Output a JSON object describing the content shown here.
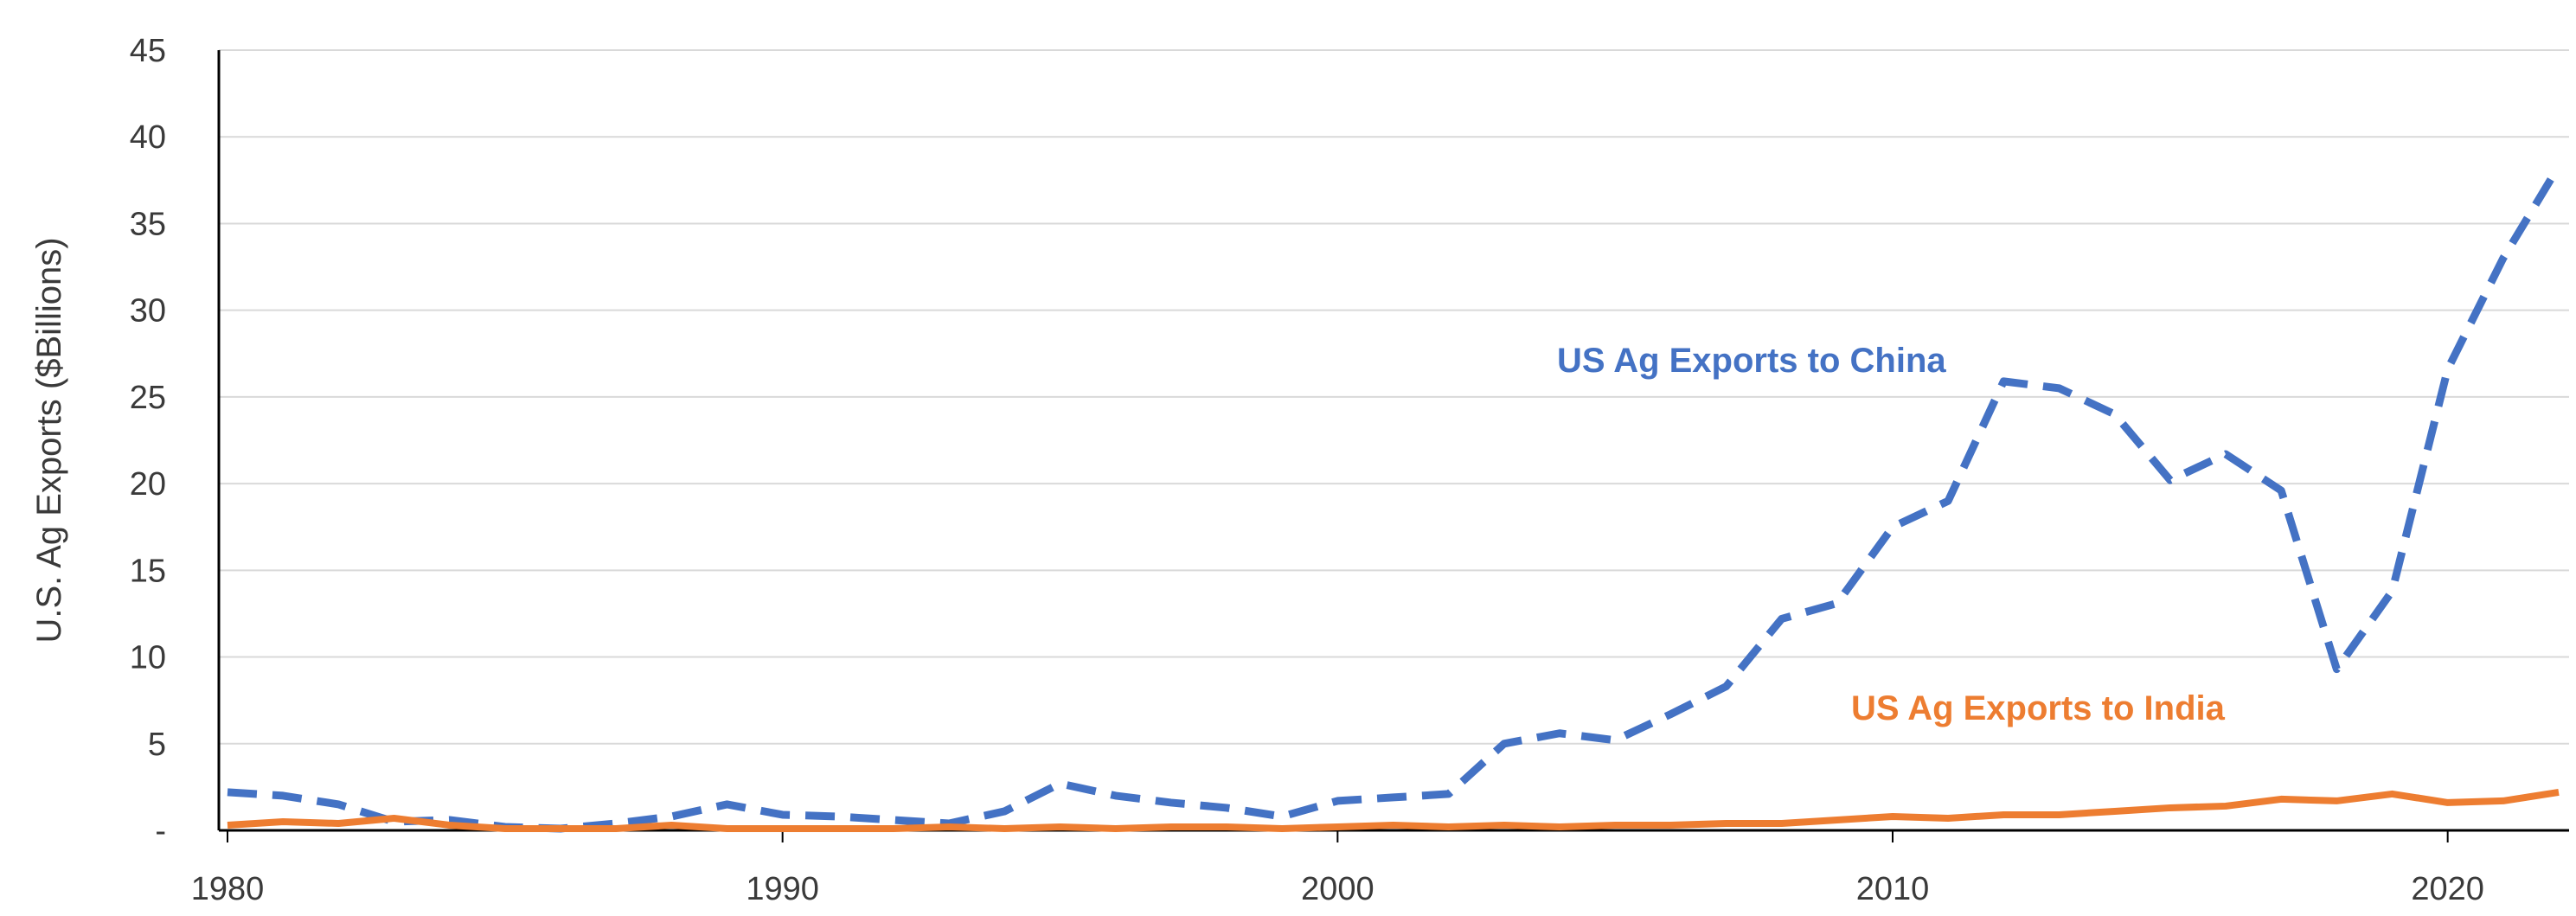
{
  "chart_data": {
    "type": "line",
    "ylabel": "U.S. Ag Exports ($Billions)",
    "xlabel": "",
    "xlim": [
      1980,
      2022
    ],
    "ylim": [
      0,
      45
    ],
    "x_ticks": [
      1980,
      1990,
      2000,
      2010,
      2020
    ],
    "y_ticks": [
      0,
      5,
      10,
      15,
      20,
      25,
      30,
      35,
      40,
      45
    ],
    "y_tick_labels": [
      "-",
      "5",
      "10",
      "15",
      "20",
      "25",
      "30",
      "35",
      "40",
      "45"
    ],
    "grid": true,
    "legend": "none",
    "x": [
      1980,
      1981,
      1982,
      1983,
      1984,
      1985,
      1986,
      1987,
      1988,
      1989,
      1990,
      1991,
      1992,
      1993,
      1994,
      1995,
      1996,
      1997,
      1998,
      1999,
      2000,
      2001,
      2002,
      2003,
      2004,
      2005,
      2006,
      2007,
      2008,
      2009,
      2010,
      2011,
      2012,
      2013,
      2014,
      2015,
      2016,
      2017,
      2018,
      2019,
      2020,
      2021,
      2022
    ],
    "series": [
      {
        "name": "US Ag Exports to China",
        "color": "#4472C4",
        "line_style": "dashed",
        "values": [
          2.2,
          2.0,
          1.5,
          0.5,
          0.6,
          0.2,
          0.1,
          0.4,
          0.8,
          1.5,
          0.9,
          0.8,
          0.6,
          0.4,
          1.1,
          2.7,
          2.0,
          1.6,
          1.3,
          0.8,
          1.7,
          1.9,
          2.1,
          5.0,
          5.6,
          5.2,
          6.7,
          8.3,
          12.2,
          13.1,
          17.5,
          19.0,
          25.9,
          25.5,
          24.0,
          20.2,
          21.7,
          19.6,
          9.3,
          13.8,
          26.6,
          33.0,
          38.3
        ]
      },
      {
        "name": "US Ag Exports to India",
        "color": "#ED7D31",
        "line_style": "solid",
        "values": [
          0.3,
          0.5,
          0.4,
          0.7,
          0.3,
          0.1,
          0.1,
          0.1,
          0.3,
          0.1,
          0.1,
          0.1,
          0.1,
          0.2,
          0.1,
          0.2,
          0.1,
          0.2,
          0.2,
          0.1,
          0.2,
          0.3,
          0.2,
          0.3,
          0.2,
          0.3,
          0.3,
          0.4,
          0.4,
          0.6,
          0.8,
          0.7,
          0.9,
          0.9,
          1.1,
          1.3,
          1.4,
          1.8,
          1.7,
          2.1,
          1.6,
          1.7,
          2.2
        ]
      }
    ]
  }
}
